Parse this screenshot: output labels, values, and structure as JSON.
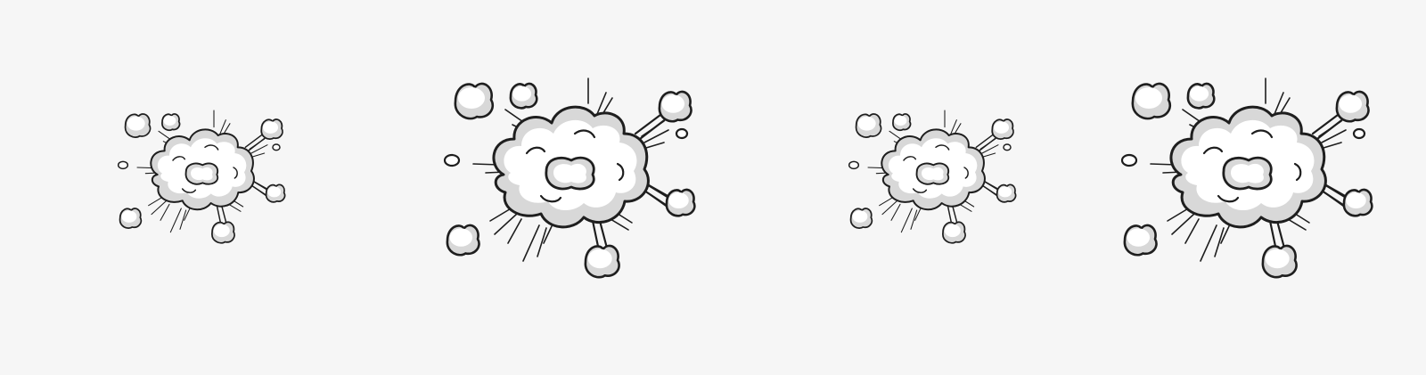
{
  "canvas": {
    "background": "#f6f6f6"
  },
  "palette": {
    "ink": "#1e1e1e",
    "cloud": "#ffffff",
    "shade": "#d8d8d8"
  },
  "illustrations": [
    {
      "icon": "comic-explosion-cloud-icon",
      "variant": "small"
    },
    {
      "icon": "comic-explosion-cloud-icon",
      "variant": "large"
    },
    {
      "icon": "comic-explosion-cloud-icon",
      "variant": "small"
    },
    {
      "icon": "comic-explosion-cloud-icon",
      "variant": "large"
    }
  ]
}
